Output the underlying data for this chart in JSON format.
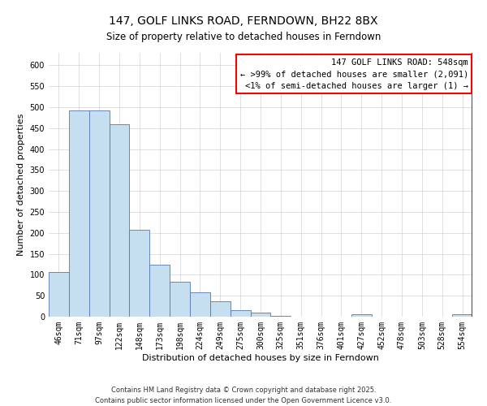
{
  "title": "147, GOLF LINKS ROAD, FERNDOWN, BH22 8BX",
  "subtitle": "Size of property relative to detached houses in Ferndown",
  "xlabel": "Distribution of detached houses by size in Ferndown",
  "ylabel": "Number of detached properties",
  "bar_color": "#c5dff0",
  "bar_edge_color": "#5577aa",
  "categories": [
    "46sqm",
    "71sqm",
    "97sqm",
    "122sqm",
    "148sqm",
    "173sqm",
    "198sqm",
    "224sqm",
    "249sqm",
    "275sqm",
    "300sqm",
    "325sqm",
    "351sqm",
    "376sqm",
    "401sqm",
    "427sqm",
    "452sqm",
    "478sqm",
    "503sqm",
    "528sqm",
    "554sqm"
  ],
  "values": [
    107,
    493,
    493,
    460,
    208,
    125,
    83,
    58,
    37,
    15,
    10,
    2,
    0,
    0,
    0,
    5,
    0,
    0,
    0,
    0,
    5
  ],
  "ylim": [
    0,
    630
  ],
  "yticks": [
    0,
    50,
    100,
    150,
    200,
    250,
    300,
    350,
    400,
    450,
    500,
    550,
    600
  ],
  "legend_title": "147 GOLF LINKS ROAD: 548sqm",
  "legend_line1": "← >99% of detached houses are smaller (2,091)",
  "legend_line2": "<1% of semi-detached houses are larger (1) →",
  "footer1": "Contains HM Land Registry data © Crown copyright and database right 2025.",
  "footer2": "Contains public sector information licensed under the Open Government Licence v3.0.",
  "title_fontsize": 10,
  "subtitle_fontsize": 8.5,
  "axis_label_fontsize": 8,
  "tick_fontsize": 7,
  "legend_fontsize": 7.5,
  "footer_fontsize": 6
}
